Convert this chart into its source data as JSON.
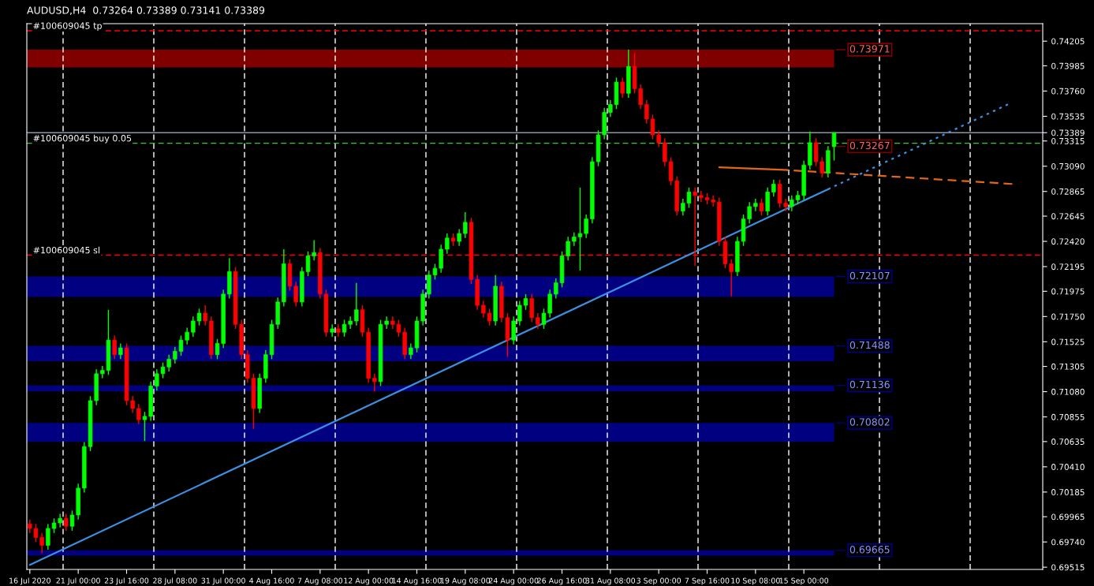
{
  "chart_data": {
    "type": "candlestick",
    "title": "AUDUSD,H4  0.73264 0.73389 0.73141 0.73389",
    "categories": [
      "16 Jul 2020",
      null,
      null,
      null,
      null,
      null,
      null,
      null,
      "21 Jul 00:00",
      null,
      null,
      null,
      null,
      null,
      null,
      null,
      "23 Jul 16:00",
      null,
      null,
      null,
      null,
      null,
      null,
      null,
      "28 Jul 08:00",
      null,
      null,
      null,
      null,
      null,
      null,
      null,
      "31 Jul 00:00",
      null,
      null,
      null,
      null,
      null,
      null,
      null,
      "4 Aug 16:00",
      null,
      null,
      null,
      null,
      null,
      null,
      null,
      "7 Aug 08:00",
      null,
      null,
      null,
      null,
      null,
      null,
      null,
      "12 Aug 00:00",
      null,
      null,
      null,
      null,
      null,
      null,
      null,
      "14 Aug 16:00",
      null,
      null,
      null,
      null,
      null,
      null,
      null,
      "19 Aug 08:00",
      null,
      null,
      null,
      null,
      null,
      null,
      null,
      "24 Aug 00:00",
      null,
      null,
      null,
      null,
      null,
      null,
      null,
      "26 Aug 16:00",
      null,
      null,
      null,
      null,
      null,
      null,
      null,
      "31 Aug 08:00",
      null,
      null,
      null,
      null,
      null,
      null,
      null,
      "3 Sep 00:00",
      null,
      null,
      null,
      null,
      null,
      null,
      null,
      "7 Sep 16:00",
      null,
      null,
      null,
      null,
      null,
      null,
      null,
      "10 Sep 08:00",
      null,
      null,
      null,
      null,
      null,
      null,
      null,
      "15 Sep 00:00",
      null,
      null,
      null,
      null,
      null,
      null,
      null,
      null,
      null,
      null,
      null,
      null,
      null,
      null,
      null,
      null,
      null,
      null,
      null,
      null,
      null,
      null,
      null,
      null,
      null,
      null,
      null,
      null,
      null,
      null,
      null,
      null,
      null,
      null,
      null,
      null,
      null,
      null,
      null
    ],
    "ohlc": [
      [
        0.699,
        0.6994,
        0.6982,
        0.6986
      ],
      [
        0.6986,
        0.699,
        0.6974,
        0.6978
      ],
      [
        0.6978,
        0.6982,
        0.6964,
        0.6971
      ],
      [
        0.6971,
        0.699,
        0.6967,
        0.6986
      ],
      [
        0.6986,
        0.6995,
        0.6982,
        0.6991
      ],
      [
        0.6991,
        0.6999,
        0.6987,
        0.6995
      ],
      [
        0.6995,
        0.6999,
        0.6984,
        0.6988
      ],
      [
        0.6988,
        0.7002,
        0.6984,
        0.6998
      ],
      [
        0.6998,
        0.7026,
        0.6994,
        0.7022
      ],
      [
        0.7022,
        0.7063,
        0.7018,
        0.7059
      ],
      [
        0.7059,
        0.7104,
        0.7055,
        0.71
      ],
      [
        0.71,
        0.7128,
        0.7096,
        0.7124
      ],
      [
        0.7124,
        0.7131,
        0.712,
        0.7127
      ],
      [
        0.7127,
        0.7181,
        0.7123,
        0.7154
      ],
      [
        0.7154,
        0.7158,
        0.7137,
        0.7141
      ],
      [
        0.7141,
        0.7151,
        0.7137,
        0.7147
      ],
      [
        0.7147,
        0.7151,
        0.7096,
        0.71
      ],
      [
        0.71,
        0.7104,
        0.7089,
        0.7093
      ],
      [
        0.7093,
        0.7097,
        0.7079,
        0.7083
      ],
      [
        0.7083,
        0.709,
        0.7064,
        0.7086
      ],
      [
        0.7086,
        0.7117,
        0.7082,
        0.7113
      ],
      [
        0.7113,
        0.7128,
        0.7109,
        0.7124
      ],
      [
        0.7124,
        0.7134,
        0.712,
        0.713
      ],
      [
        0.713,
        0.7141,
        0.7126,
        0.7137
      ],
      [
        0.7137,
        0.7148,
        0.7133,
        0.7144
      ],
      [
        0.7144,
        0.7158,
        0.714,
        0.7154
      ],
      [
        0.7154,
        0.7165,
        0.715,
        0.7161
      ],
      [
        0.7161,
        0.7175,
        0.7157,
        0.7171
      ],
      [
        0.7171,
        0.7182,
        0.7167,
        0.7178
      ],
      [
        0.7178,
        0.7185,
        0.7167,
        0.7171
      ],
      [
        0.7171,
        0.7175,
        0.7137,
        0.7141
      ],
      [
        0.7141,
        0.7155,
        0.7137,
        0.7151
      ],
      [
        0.7151,
        0.7199,
        0.7147,
        0.7195
      ],
      [
        0.7195,
        0.7227,
        0.7191,
        0.7215
      ],
      [
        0.7215,
        0.7219,
        0.7164,
        0.7168
      ],
      [
        0.7168,
        0.7172,
        0.7137,
        0.7141
      ],
      [
        0.7141,
        0.7145,
        0.7116,
        0.712
      ],
      [
        0.712,
        0.7124,
        0.7075,
        0.7093
      ],
      [
        0.7093,
        0.7124,
        0.7089,
        0.712
      ],
      [
        0.712,
        0.7145,
        0.7116,
        0.7141
      ],
      [
        0.7141,
        0.7172,
        0.7137,
        0.7168
      ],
      [
        0.7168,
        0.7192,
        0.7164,
        0.7188
      ],
      [
        0.7188,
        0.7235,
        0.7184,
        0.7222
      ],
      [
        0.7222,
        0.7226,
        0.7198,
        0.7202
      ],
      [
        0.7202,
        0.7206,
        0.7184,
        0.7188
      ],
      [
        0.7188,
        0.7219,
        0.7184,
        0.7215
      ],
      [
        0.7215,
        0.7233,
        0.7211,
        0.7229
      ],
      [
        0.7229,
        0.7243,
        0.7225,
        0.7232
      ],
      [
        0.7232,
        0.7236,
        0.7191,
        0.7195
      ],
      [
        0.7195,
        0.7199,
        0.7157,
        0.7161
      ],
      [
        0.7161,
        0.7168,
        0.7157,
        0.7164
      ],
      [
        0.7164,
        0.7168,
        0.7157,
        0.7161
      ],
      [
        0.7161,
        0.7172,
        0.7157,
        0.7168
      ],
      [
        0.7168,
        0.7175,
        0.7164,
        0.7171
      ],
      [
        0.7171,
        0.7205,
        0.7167,
        0.7181
      ],
      [
        0.7181,
        0.7185,
        0.7157,
        0.7161
      ],
      [
        0.7161,
        0.7165,
        0.7116,
        0.712
      ],
      [
        0.712,
        0.7124,
        0.7108,
        0.7117
      ],
      [
        0.7117,
        0.7172,
        0.7113,
        0.7168
      ],
      [
        0.7168,
        0.7175,
        0.7164,
        0.7171
      ],
      [
        0.7171,
        0.7175,
        0.7164,
        0.7168
      ],
      [
        0.7168,
        0.7172,
        0.7157,
        0.7161
      ],
      [
        0.7161,
        0.7165,
        0.7137,
        0.7141
      ],
      [
        0.7141,
        0.7151,
        0.7137,
        0.7147
      ],
      [
        0.7147,
        0.7175,
        0.7143,
        0.7171
      ],
      [
        0.7171,
        0.7199,
        0.7167,
        0.7195
      ],
      [
        0.7195,
        0.7216,
        0.7191,
        0.7212
      ],
      [
        0.7212,
        0.7222,
        0.7208,
        0.7218
      ],
      [
        0.7218,
        0.7239,
        0.7214,
        0.7235
      ],
      [
        0.7235,
        0.7249,
        0.7231,
        0.7245
      ],
      [
        0.7245,
        0.7249,
        0.7238,
        0.7242
      ],
      [
        0.7242,
        0.7253,
        0.7238,
        0.7249
      ],
      [
        0.7249,
        0.7268,
        0.7245,
        0.7259
      ],
      [
        0.7259,
        0.7263,
        0.7204,
        0.7208
      ],
      [
        0.7208,
        0.7212,
        0.7181,
        0.7185
      ],
      [
        0.7185,
        0.7189,
        0.7174,
        0.7178
      ],
      [
        0.7178,
        0.7182,
        0.7167,
        0.7171
      ],
      [
        0.7171,
        0.7212,
        0.7167,
        0.7202
      ],
      [
        0.7202,
        0.7206,
        0.717,
        0.7174
      ],
      [
        0.7174,
        0.7178,
        0.7139,
        0.7154
      ],
      [
        0.7154,
        0.7175,
        0.715,
        0.7171
      ],
      [
        0.7171,
        0.7189,
        0.7167,
        0.7185
      ],
      [
        0.7185,
        0.7195,
        0.7181,
        0.7191
      ],
      [
        0.7191,
        0.7195,
        0.717,
        0.7174
      ],
      [
        0.7174,
        0.7178,
        0.7164,
        0.7168
      ],
      [
        0.7168,
        0.7182,
        0.7164,
        0.7178
      ],
      [
        0.7178,
        0.7199,
        0.7174,
        0.7195
      ],
      [
        0.7195,
        0.7209,
        0.7191,
        0.7205
      ],
      [
        0.7205,
        0.7233,
        0.7201,
        0.7229
      ],
      [
        0.7229,
        0.7246,
        0.7225,
        0.7242
      ],
      [
        0.7242,
        0.725,
        0.7238,
        0.7246
      ],
      [
        0.7246,
        0.729,
        0.7216,
        0.7249
      ],
      [
        0.7249,
        0.7266,
        0.7245,
        0.7262
      ],
      [
        0.7262,
        0.7317,
        0.7258,
        0.7313
      ],
      [
        0.7313,
        0.7341,
        0.7309,
        0.7337
      ],
      [
        0.7337,
        0.7361,
        0.7333,
        0.7357
      ],
      [
        0.7357,
        0.7368,
        0.7353,
        0.7364
      ],
      [
        0.7364,
        0.7388,
        0.736,
        0.7384
      ],
      [
        0.7384,
        0.7388,
        0.737,
        0.7374
      ],
      [
        0.7374,
        0.7413,
        0.737,
        0.7398
      ],
      [
        0.7398,
        0.741,
        0.7374,
        0.7378
      ],
      [
        0.7378,
        0.7382,
        0.736,
        0.7364
      ],
      [
        0.7364,
        0.7368,
        0.7347,
        0.7351
      ],
      [
        0.7351,
        0.7355,
        0.7333,
        0.7337
      ],
      [
        0.7337,
        0.7341,
        0.7326,
        0.733
      ],
      [
        0.733,
        0.7334,
        0.7309,
        0.7313
      ],
      [
        0.7313,
        0.7317,
        0.7292,
        0.7296
      ],
      [
        0.7296,
        0.73,
        0.7265,
        0.7269
      ],
      [
        0.7269,
        0.728,
        0.7265,
        0.7276
      ],
      [
        0.7276,
        0.729,
        0.7272,
        0.7286
      ],
      [
        0.7286,
        0.729,
        0.722,
        0.7283
      ],
      [
        0.7283,
        0.7287,
        0.7277,
        0.7281
      ],
      [
        0.7281,
        0.7285,
        0.7275,
        0.7279
      ],
      [
        0.7279,
        0.7283,
        0.7273,
        0.7277
      ],
      [
        0.7277,
        0.7281,
        0.7238,
        0.7242
      ],
      [
        0.7242,
        0.7246,
        0.7218,
        0.7222
      ],
      [
        0.7222,
        0.7226,
        0.7193,
        0.7215
      ],
      [
        0.7215,
        0.7246,
        0.7211,
        0.7242
      ],
      [
        0.7242,
        0.7266,
        0.7238,
        0.7262
      ],
      [
        0.7262,
        0.7277,
        0.7258,
        0.7273
      ],
      [
        0.7273,
        0.728,
        0.7269,
        0.7276
      ],
      [
        0.7276,
        0.728,
        0.7265,
        0.7269
      ],
      [
        0.7269,
        0.729,
        0.7265,
        0.7286
      ],
      [
        0.7286,
        0.7297,
        0.7282,
        0.7293
      ],
      [
        0.7293,
        0.7297,
        0.7272,
        0.7276
      ],
      [
        0.7276,
        0.728,
        0.7269,
        0.7273
      ],
      [
        0.7273,
        0.7283,
        0.7269,
        0.7279
      ],
      [
        0.7279,
        0.7287,
        0.7275,
        0.7283
      ],
      [
        0.7283,
        0.7314,
        0.7279,
        0.731
      ],
      [
        0.731,
        0.734,
        0.7306,
        0.733
      ],
      [
        0.733,
        0.7334,
        0.7309,
        0.7313
      ],
      [
        0.7313,
        0.7317,
        0.7299,
        0.7303
      ],
      [
        0.7303,
        0.7327,
        0.7299,
        0.7323
      ],
      [
        0.73264,
        0.73389,
        0.73141,
        0.73389
      ],
      null,
      null,
      null,
      null,
      null,
      null,
      null,
      null,
      null,
      null,
      null,
      null,
      null,
      null,
      null,
      null,
      null,
      null,
      null,
      null,
      null,
      null,
      null,
      null,
      null,
      null,
      null,
      null,
      null,
      null,
      null,
      null,
      null,
      null
    ],
    "ylim": [
      0.69495,
      0.74361
    ],
    "yticks": [
      {
        "value": 0.69515,
        "label": "0.69515"
      },
      {
        "value": 0.6974,
        "label": "0.69740"
      },
      {
        "value": 0.69965,
        "label": "0.69965"
      },
      {
        "value": 0.70185,
        "label": "0.70185"
      },
      {
        "value": 0.7041,
        "label": "0.70410"
      },
      {
        "value": 0.70635,
        "label": "0.70635"
      },
      {
        "value": 0.70855,
        "label": "0.70855"
      },
      {
        "value": 0.7108,
        "label": "0.71080"
      },
      {
        "value": 0.71305,
        "label": "0.71305"
      },
      {
        "value": 0.71525,
        "label": "0.71525"
      },
      {
        "value": 0.7175,
        "label": "0.71750"
      },
      {
        "value": 0.71975,
        "label": "0.71975"
      },
      {
        "value": 0.72195,
        "label": "0.72195"
      },
      {
        "value": 0.7242,
        "label": "0.72420"
      },
      {
        "value": 0.72645,
        "label": "0.72645"
      },
      {
        "value": 0.72865,
        "label": "0.72865"
      },
      {
        "value": 0.7309,
        "label": "0.73090"
      },
      {
        "value": 0.73315,
        "label": "0.73315"
      },
      {
        "value": 0.73389,
        "label": "0.73389"
      },
      {
        "value": 0.73535,
        "label": "0.73535"
      },
      {
        "value": 0.7376,
        "label": "0.73760"
      },
      {
        "value": 0.73985,
        "label": "0.73985"
      },
      {
        "value": 0.74205,
        "label": "0.74205"
      }
    ],
    "series": [
      {
        "type": "line",
        "color": "#3d8fe0",
        "line_style": "solid",
        "values": [
          0.69535,
          null,
          null,
          null,
          null,
          null,
          null,
          null,
          null,
          null,
          null,
          null,
          null,
          null,
          null,
          null,
          null,
          null,
          null,
          null,
          null,
          null,
          null,
          null,
          null,
          null,
          null,
          null,
          null,
          null,
          null,
          null,
          null,
          null,
          null,
          null,
          null,
          null,
          null,
          null,
          null,
          null,
          null,
          null,
          null,
          null,
          null,
          null,
          null,
          null,
          null,
          null,
          null,
          null,
          null,
          null,
          null,
          null,
          null,
          null,
          null,
          null,
          null,
          null,
          null,
          null,
          null,
          null,
          null,
          null,
          null,
          null,
          null,
          null,
          null,
          null,
          null,
          null,
          null,
          null,
          null,
          null,
          null,
          null,
          null,
          null,
          null,
          null,
          null,
          null,
          null,
          null,
          null,
          null,
          null,
          null,
          null,
          null,
          null,
          null,
          null,
          null,
          null,
          null,
          null,
          null,
          null,
          null,
          null,
          null,
          null,
          null,
          null,
          null,
          null,
          null,
          null,
          null,
          null,
          null,
          null,
          null,
          null,
          null,
          null,
          null,
          null,
          null,
          null,
          null,
          null,
          null,
          0.72885,
          null,
          null,
          null,
          null,
          null,
          null,
          null,
          null,
          null,
          null,
          null,
          null,
          null,
          null,
          null,
          null,
          null,
          null,
          null,
          null,
          null,
          null,
          null,
          null,
          null,
          null,
          null,
          null,
          null,
          null,
          null,
          null,
          null,
          null,
          null
        ]
      },
      {
        "type": "line",
        "color": "#3d8fe0",
        "line_style": "dotted",
        "values": [
          null,
          null,
          null,
          null,
          null,
          null,
          null,
          null,
          null,
          null,
          null,
          null,
          null,
          null,
          null,
          null,
          null,
          null,
          null,
          null,
          null,
          null,
          null,
          null,
          null,
          null,
          null,
          null,
          null,
          null,
          null,
          null,
          null,
          null,
          null,
          null,
          null,
          null,
          null,
          null,
          null,
          null,
          null,
          null,
          null,
          null,
          null,
          null,
          null,
          null,
          null,
          null,
          null,
          null,
          null,
          null,
          null,
          null,
          null,
          null,
          null,
          null,
          null,
          null,
          null,
          null,
          null,
          null,
          null,
          null,
          null,
          null,
          null,
          null,
          null,
          null,
          null,
          null,
          null,
          null,
          null,
          null,
          null,
          null,
          null,
          null,
          null,
          null,
          null,
          null,
          null,
          null,
          null,
          null,
          null,
          null,
          null,
          null,
          null,
          null,
          null,
          null,
          null,
          null,
          null,
          null,
          null,
          null,
          null,
          null,
          null,
          null,
          null,
          null,
          null,
          null,
          null,
          null,
          null,
          null,
          null,
          null,
          null,
          null,
          null,
          null,
          null,
          null,
          null,
          null,
          null,
          null,
          0.72885,
          null,
          null,
          null,
          null,
          null,
          null,
          null,
          null,
          null,
          null,
          null,
          null,
          null,
          null,
          null,
          null,
          null,
          null,
          null,
          null,
          null,
          null,
          null,
          null,
          null,
          null,
          null,
          null,
          null,
          0.73648,
          null,
          null,
          null,
          null,
          null
        ]
      },
      {
        "type": "line",
        "color": "#e0661a",
        "line_style": "solid",
        "values": [
          null,
          null,
          null,
          null,
          null,
          null,
          null,
          null,
          null,
          null,
          null,
          null,
          null,
          null,
          null,
          null,
          null,
          null,
          null,
          null,
          null,
          null,
          null,
          null,
          null,
          null,
          null,
          null,
          null,
          null,
          null,
          null,
          null,
          null,
          null,
          null,
          null,
          null,
          null,
          null,
          null,
          null,
          null,
          null,
          null,
          null,
          null,
          null,
          null,
          null,
          null,
          null,
          null,
          null,
          null,
          null,
          null,
          null,
          null,
          null,
          null,
          null,
          null,
          null,
          null,
          null,
          null,
          null,
          null,
          null,
          null,
          null,
          null,
          null,
          null,
          null,
          null,
          null,
          null,
          null,
          null,
          null,
          null,
          null,
          null,
          null,
          null,
          null,
          null,
          null,
          null,
          null,
          null,
          null,
          null,
          null,
          null,
          null,
          null,
          null,
          null,
          null,
          null,
          null,
          null,
          null,
          null,
          null,
          null,
          null,
          null,
          null,
          null,
          null,
          0.7308,
          null,
          null,
          null,
          null,
          null,
          null,
          null,
          null,
          null,
          0.7306,
          null,
          null,
          null,
          null,
          null,
          null,
          null,
          null,
          null,
          null,
          null,
          null,
          null,
          null,
          null,
          null,
          null,
          null,
          null,
          null,
          null,
          null,
          null,
          null,
          null,
          null,
          null,
          null,
          null,
          null,
          null,
          null,
          null,
          null,
          null,
          null,
          null,
          null,
          null,
          null,
          null,
          null,
          null
        ]
      },
      {
        "type": "line",
        "color": "#e0661a",
        "line_style": "dashed",
        "values": [
          null,
          null,
          null,
          null,
          null,
          null,
          null,
          null,
          null,
          null,
          null,
          null,
          null,
          null,
          null,
          null,
          null,
          null,
          null,
          null,
          null,
          null,
          null,
          null,
          null,
          null,
          null,
          null,
          null,
          null,
          null,
          null,
          null,
          null,
          null,
          null,
          null,
          null,
          null,
          null,
          null,
          null,
          null,
          null,
          null,
          null,
          null,
          null,
          null,
          null,
          null,
          null,
          null,
          null,
          null,
          null,
          null,
          null,
          null,
          null,
          null,
          null,
          null,
          null,
          null,
          null,
          null,
          null,
          null,
          null,
          null,
          null,
          null,
          null,
          null,
          null,
          null,
          null,
          null,
          null,
          null,
          null,
          null,
          null,
          null,
          null,
          null,
          null,
          null,
          null,
          null,
          null,
          null,
          null,
          null,
          null,
          null,
          null,
          null,
          null,
          null,
          null,
          null,
          null,
          null,
          null,
          null,
          null,
          null,
          null,
          null,
          null,
          null,
          null,
          null,
          null,
          null,
          null,
          null,
          null,
          null,
          null,
          null,
          null,
          0.7306,
          null,
          null,
          null,
          null,
          null,
          null,
          null,
          null,
          null,
          null,
          null,
          null,
          null,
          null,
          null,
          null,
          null,
          null,
          null,
          null,
          null,
          null,
          null,
          null,
          null,
          null,
          null,
          null,
          null,
          null,
          null,
          null,
          null,
          null,
          null,
          null,
          null,
          null,
          0.7293,
          null,
          null,
          null,
          null
        ]
      }
    ],
    "ref_lines": [
      {
        "axis": "y",
        "value": 0.74298,
        "label": "#100609045 tp",
        "color": "#ff0000",
        "line_style": "dashed"
      },
      {
        "axis": "y",
        "value": 0.73389,
        "label": null,
        "color": "#8c96a5",
        "line_style": "solid"
      },
      {
        "axis": "y",
        "value": 0.73295,
        "label": "#100609045 buy 0.05",
        "color": "#32cd32",
        "line_style": "dashed"
      },
      {
        "axis": "y",
        "value": 0.72297,
        "label": "#100609045 sl",
        "color": "#ff0000",
        "line_style": "dashed"
      }
    ],
    "bands": [
      {
        "axis": "y",
        "from": 0.73971,
        "to": 0.74129,
        "label": "0.73971",
        "color": "#800000"
      },
      {
        "axis": "y",
        "from": 0.71924,
        "to": 0.72107,
        "label": "0.72107",
        "color": "#000080"
      },
      {
        "axis": "y",
        "from": 0.71352,
        "to": 0.71488,
        "label": "0.71488",
        "color": "#000080"
      },
      {
        "axis": "y",
        "from": 0.71082,
        "to": 0.71136,
        "label": "0.71136",
        "color": "#000080"
      },
      {
        "axis": "y",
        "from": 0.70633,
        "to": 0.70802,
        "label": "0.70802",
        "color": "#000080"
      },
      {
        "axis": "y",
        "from": 0.69618,
        "to": 0.69665,
        "label": "0.69665",
        "color": "#000080"
      }
    ],
    "annotations": [
      {
        "text": "0.73267",
        "y": 0.73267
      }
    ]
  }
}
